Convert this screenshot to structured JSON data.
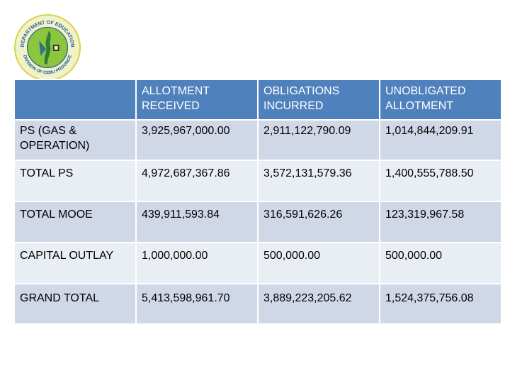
{
  "logo": {
    "text_top": "DEPARTMENT OF EDUCATION",
    "text_bottom": "DIVISION OF CEBU PROVINCE"
  },
  "table": {
    "headers": [
      "",
      "ALLOTMENT RECEIVED",
      "OBLIGATIONS INCURRED",
      "UNOBLIGATED ALLOTMENT"
    ],
    "rows": [
      [
        "PS (GAS & OPERATION)",
        "3,925,967,000.00",
        "2,911,122,790.09",
        "1,014,844,209.91"
      ],
      [
        "TOTAL PS",
        "4,972,687,367.86",
        "3,572,131,579.36",
        "1,400,555,788.50"
      ],
      [
        "TOTAL MOOE",
        "439,911,593.84",
        "316,591,626.26",
        "123,319,967.58"
      ],
      [
        "CAPITAL OUTLAY",
        "1,000,000.00",
        "500,000.00",
        "500,000.00"
      ],
      [
        "GRAND TOTAL",
        "5,413,598,961.70",
        "3,889,223,205.62",
        "1,524,375,756.08"
      ]
    ]
  },
  "colors": {
    "header_bg": "#4f81bd",
    "row_dark": "#d0d8e8",
    "row_light": "#e9edf4",
    "seal_ring": "#d6d24a",
    "seal_inner": "#8cc63f",
    "seal_text": "#1a5c9e"
  }
}
